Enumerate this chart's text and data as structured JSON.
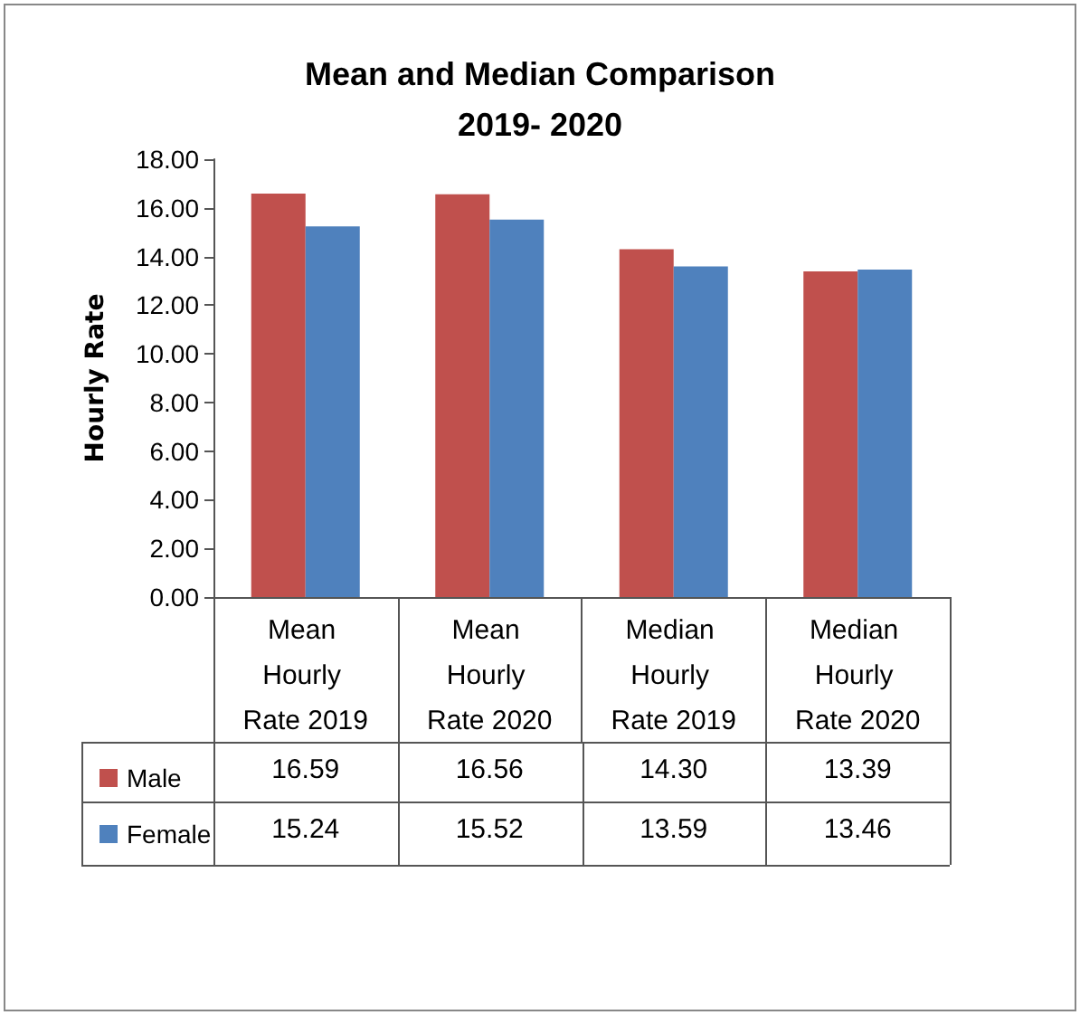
{
  "chart_data": {
    "type": "bar",
    "title": "Mean and Median Comparison\n2019- 2020",
    "ylabel": "Hourly Rate",
    "categories": [
      "Mean Hourly Rate 2019",
      "Mean Hourly Rate 2020",
      "Median Hourly Rate 2019",
      "Median Hourly Rate 2020"
    ],
    "series": [
      {
        "name": "Male",
        "color": "#c0504d",
        "values": [
          16.59,
          16.56,
          14.3,
          13.39
        ],
        "value_labels": [
          "16.59",
          "16.56",
          "14.30",
          "13.39"
        ]
      },
      {
        "name": "Female",
        "color": "#4f81bd",
        "values": [
          15.24,
          15.52,
          13.59,
          13.46
        ],
        "value_labels": [
          "15.24",
          "15.52",
          "13.59",
          "13.46"
        ]
      }
    ],
    "ylim": [
      0,
      18
    ],
    "yticks": [
      {
        "value": 0,
        "label": "0.00"
      },
      {
        "value": 2,
        "label": "2.00"
      },
      {
        "value": 4,
        "label": "4.00"
      },
      {
        "value": 6,
        "label": "6.00"
      },
      {
        "value": 8,
        "label": "8.00"
      },
      {
        "value": 10,
        "label": "10.00"
      },
      {
        "value": 12,
        "label": "12.00"
      },
      {
        "value": 14,
        "label": "14.00"
      },
      {
        "value": 16,
        "label": "16.00"
      },
      {
        "value": 18,
        "label": "18.00"
      }
    ],
    "legend": "bottom left"
  }
}
